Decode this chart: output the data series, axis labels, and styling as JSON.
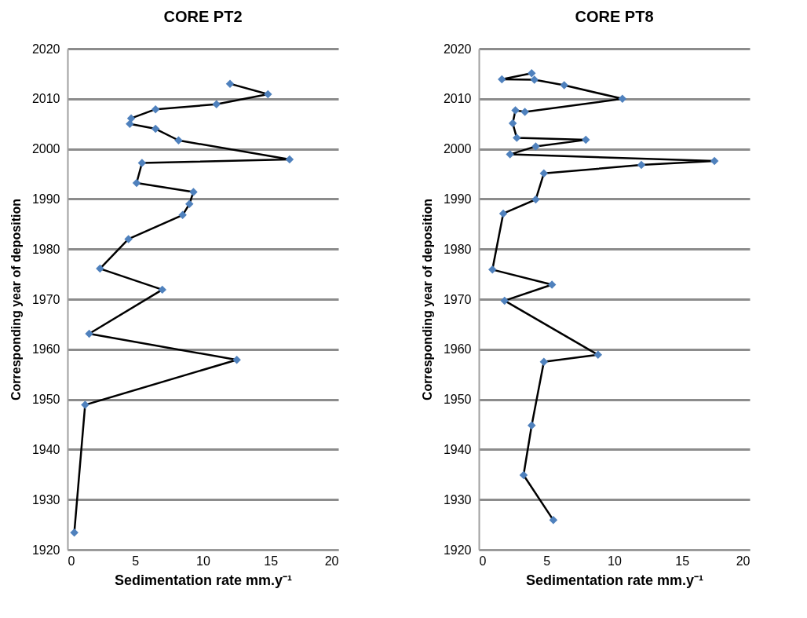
{
  "chart_data": [
    {
      "type": "line",
      "title": "CORE PT2",
      "xlabel": "Sedimentation rate mm.y⁻¹",
      "ylabel": "Corresponding  year of deposition",
      "xlim": [
        0,
        20
      ],
      "xticks": [
        0,
        5,
        10,
        15,
        20
      ],
      "ylim": [
        1920,
        2020
      ],
      "yticks": [
        1920,
        1930,
        1940,
        1950,
        1960,
        1970,
        1980,
        1990,
        2000,
        2010,
        2020
      ],
      "grid": "y",
      "marker": "diamond",
      "line_style": "solid",
      "series": [
        {
          "color": "#4f81bd",
          "x": [
            12.0,
            14.8,
            11.0,
            6.5,
            4.7,
            4.6,
            6.5,
            8.2,
            16.4,
            5.5,
            5.1,
            9.3,
            9.0,
            8.5,
            4.5,
            2.4,
            7.0,
            1.6,
            12.5,
            1.3,
            0.5
          ],
          "values": [
            2013.0,
            2010.9,
            2008.9,
            2007.9,
            2006.1,
            2005.0,
            2004.0,
            2001.7,
            1997.9,
            1997.2,
            1993.2,
            1991.4,
            1989.0,
            1986.8,
            1982.0,
            1976.1,
            1971.9,
            1963.1,
            1957.9,
            1948.9,
            1923.4
          ]
        }
      ]
    },
    {
      "type": "line",
      "title": "CORE PT8",
      "xlabel": "Sedimentation rate mm.y⁻¹",
      "ylabel": "Corresponding  year of deposition",
      "xlim": [
        0,
        20
      ],
      "xticks": [
        0,
        5,
        10,
        15,
        20
      ],
      "ylim": [
        1920,
        2020
      ],
      "yticks": [
        1920,
        1930,
        1940,
        1950,
        1960,
        1970,
        1980,
        1990,
        2000,
        2010,
        2020
      ],
      "grid": "y",
      "marker": "diamond",
      "line_style": "solid",
      "series": [
        {
          "color": "#4f81bd",
          "x": [
            3.9,
            1.7,
            4.1,
            6.3,
            10.6,
            3.4,
            2.7,
            2.5,
            2.8,
            7.9,
            4.2,
            2.3,
            17.4,
            12.0,
            4.8,
            4.2,
            1.8,
            1.0,
            5.4,
            1.9,
            8.8,
            4.8,
            3.9,
            3.3,
            5.5
          ],
          "values": [
            2015.1,
            2013.9,
            2013.8,
            2012.7,
            2010.0,
            2007.4,
            2007.7,
            2005.1,
            2002.2,
            2001.8,
            2000.5,
            1998.9,
            1997.6,
            1996.8,
            1995.1,
            1989.9,
            1987.1,
            1975.9,
            1972.9,
            1969.7,
            1958.9,
            1957.5,
            1944.8,
            1934.9,
            1925.9
          ]
        }
      ]
    }
  ]
}
